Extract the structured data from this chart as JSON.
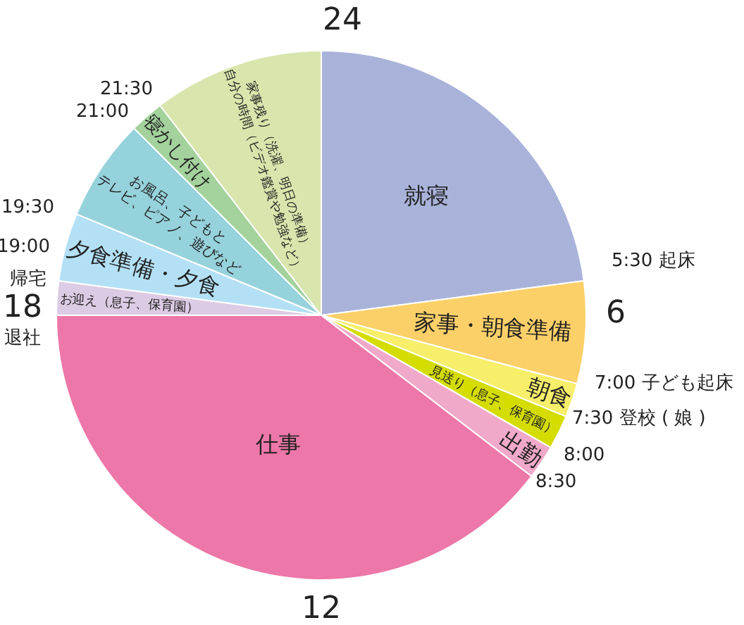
{
  "chart_data": {
    "type": "pie",
    "categories": [
      "就寝",
      "家事・朝食準備",
      "朝食",
      "見送り（息子、保育園）",
      "出勤",
      "仕事",
      "お迎え（息子、保育園）",
      "夕食準備・夕食",
      "お風呂、子どもと\nテレビ、ピアノ、遊びなど",
      "寝かし付け",
      "家事残り（洗濯、明日の準備）\n自分の時間（ビデオ鑑賞や勉強など）"
    ],
    "values": [
      22.92,
      6.25,
      2.08,
      2.08,
      2.08,
      39.59,
      2.08,
      4.17,
      6.25,
      2.08,
      10.42
    ],
    "colors": [
      "#a9b3da",
      "#fcd068",
      "#f7ee6a",
      "#d4dc00",
      "#f1a9c9",
      "#ec77a8",
      "#dccbe4",
      "#b3e0f5",
      "#96d2dc",
      "#a3d29c",
      "#d8e6ad"
    ],
    "annotations": [
      "24",
      "5:30 起床",
      "6",
      "7:00 子ども起床",
      "7:30 登校 ( 娘 )",
      "8:00",
      "8:30",
      "12",
      "18",
      "退社",
      "帰宅",
      "19:00",
      "19:30",
      "21:00",
      "21:30"
    ],
    "legend": false
  }
}
